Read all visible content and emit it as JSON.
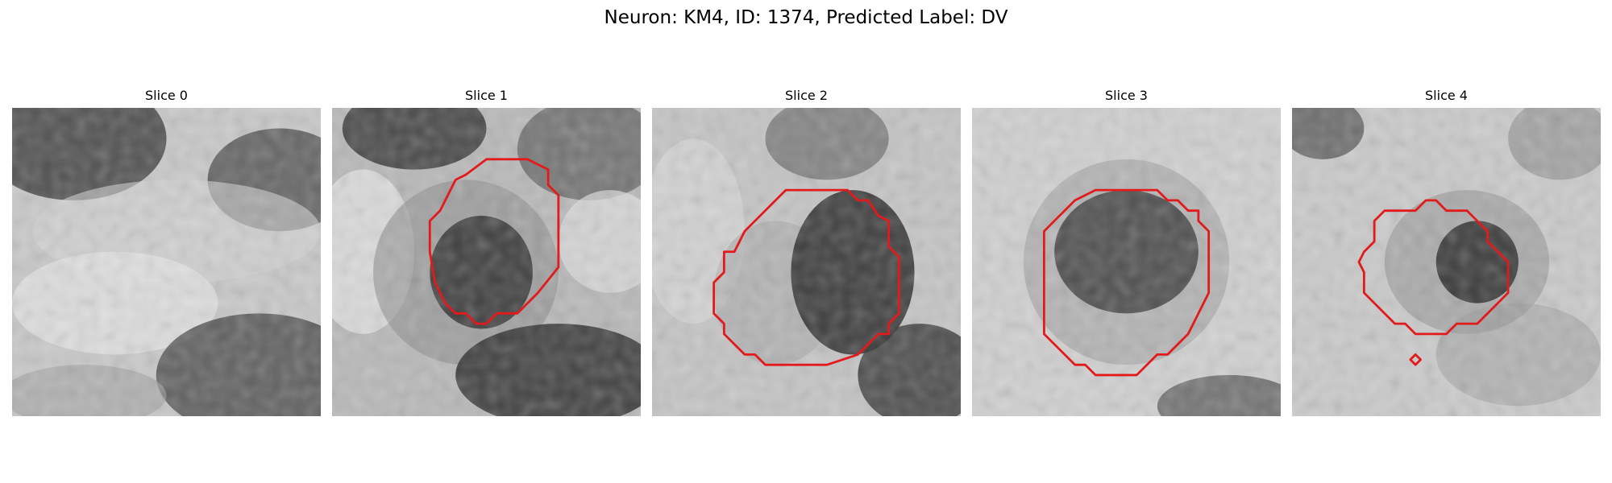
{
  "figure": {
    "title": "Neuron: KM4, ID: 1374, Predicted Label: DV"
  },
  "colors": {
    "contour": "#e31a1c",
    "background": "#ffffff"
  },
  "panels": [
    {
      "title": "Slice 0",
      "has_contour": false
    },
    {
      "title": "Slice 1",
      "has_contour": true
    },
    {
      "title": "Slice 2",
      "has_contour": true
    },
    {
      "title": "Slice 3",
      "has_contour": true
    },
    {
      "title": "Slice 4",
      "has_contour": true
    }
  ]
}
